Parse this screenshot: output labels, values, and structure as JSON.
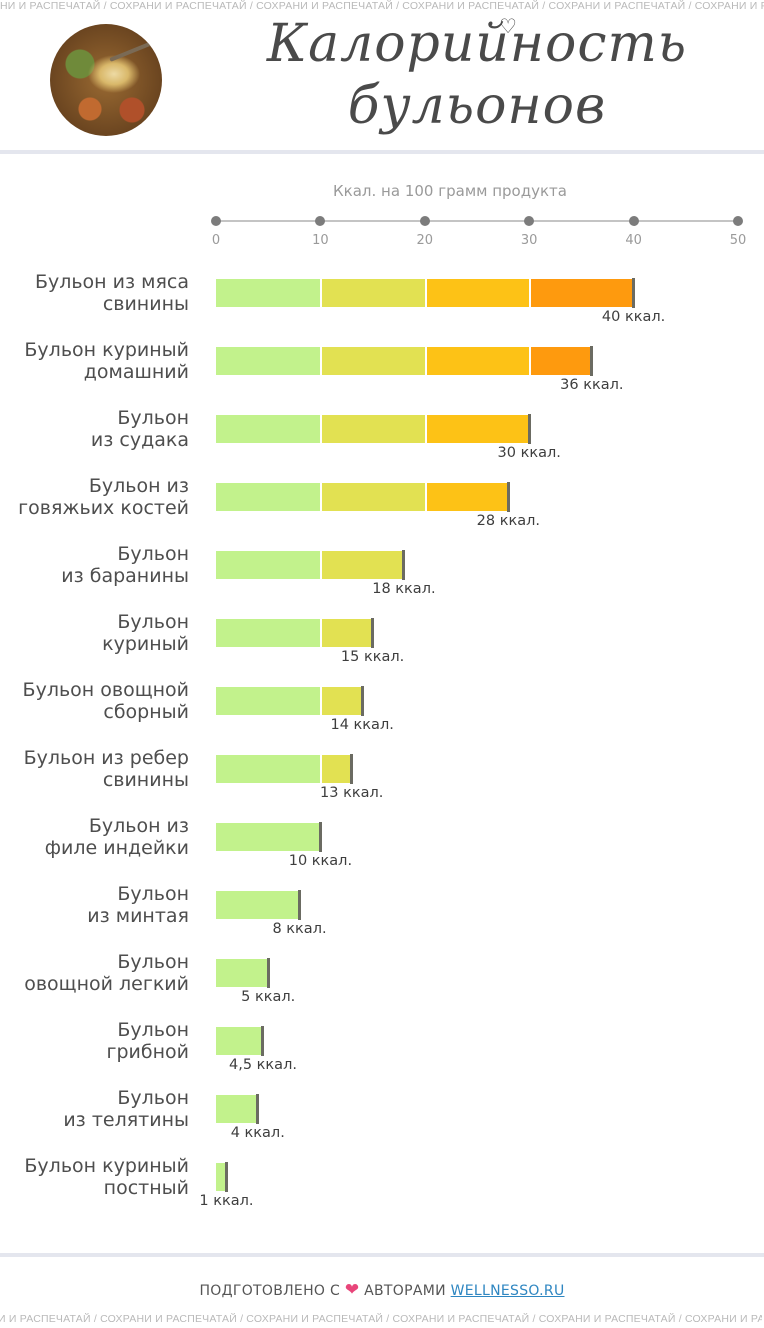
{
  "watermark": {
    "top": "НИ И РАСПЕЧАТАЙ / СОХРАНИ И РАСПЕЧАТАЙ / СОХРАНИ И РАСПЕЧАТАЙ / СОХРАНИ И РАСПЕЧАТАЙ / СОХРАНИ И РАСПЕЧАТАЙ / СОХРАНИ И РАСПЕЧАТАЙ / СОХРАНИ И РАС",
    "bottom": "И И РАСПЕЧАТАЙ / СОХРАНИ И РАСПЕЧАТАЙ / СОХРАНИ И РАСПЕЧАТАЙ / СОХРАНИ И РАСПЕЧАТАЙ / СОХРАНИ И РАСПЕЧАТАЙ / СОХРАНИ И РАСПЕЧАТАЙ / СОХРАНИ И РАС"
  },
  "header": {
    "title_line1": "Калорийность",
    "title_line2": "бульонов"
  },
  "colors": {
    "seg_0_10": "#c2f28c",
    "seg_10_20": "#e2e152",
    "seg_20_30": "#fdc216",
    "seg_30_40": "#fe9a0e",
    "bar_end": "#6b6b62",
    "heart": "#e8457a",
    "link": "#2e86c1"
  },
  "chart_data": {
    "type": "bar",
    "orientation": "horizontal",
    "xlabel": "Ккал. на 100 грамм продукта",
    "xlim": [
      0,
      50
    ],
    "xticks": [
      "0",
      "10",
      "20",
      "30",
      "40",
      "50"
    ],
    "categories": [
      [
        "Бульон из мяса",
        "свинины"
      ],
      [
        "Бульон куриный",
        "домашний"
      ],
      [
        "Бульон",
        "из судака"
      ],
      [
        "Бульон из",
        "говяжьих костей"
      ],
      [
        "Бульон",
        "из баранины"
      ],
      [
        "Бульон",
        "куриный"
      ],
      [
        "Бульон овощной",
        "сборный"
      ],
      [
        "Бульон из ребер",
        "свинины"
      ],
      [
        "Бульон из",
        "филе индейки"
      ],
      [
        "Бульон",
        "из минтая"
      ],
      [
        "Бульон",
        "овощной легкий"
      ],
      [
        "Бульон",
        "грибной"
      ],
      [
        "Бульон",
        "из телятины"
      ],
      [
        "Бульон куриный",
        "постный"
      ]
    ],
    "values": [
      40,
      36,
      30,
      28,
      18,
      15,
      14,
      13,
      10,
      8,
      5,
      4.5,
      4,
      1
    ],
    "value_labels": [
      "40 ккал.",
      "36 ккал.",
      "30 ккал.",
      "28 ккал.",
      "18 ккал.",
      "15 ккал.",
      "14 ккал.",
      "13 ккал.",
      "10 ккал.",
      "8 ккал.",
      "5 ккал.",
      "4,5 ккал.",
      "4 ккал.",
      "1 ккал."
    ]
  },
  "footer": {
    "prefix": "ПОДГОТОВЛЕНО С",
    "heart": "❤",
    "middle": "АВТОРАМИ",
    "link": "WELLNESSO.RU"
  }
}
